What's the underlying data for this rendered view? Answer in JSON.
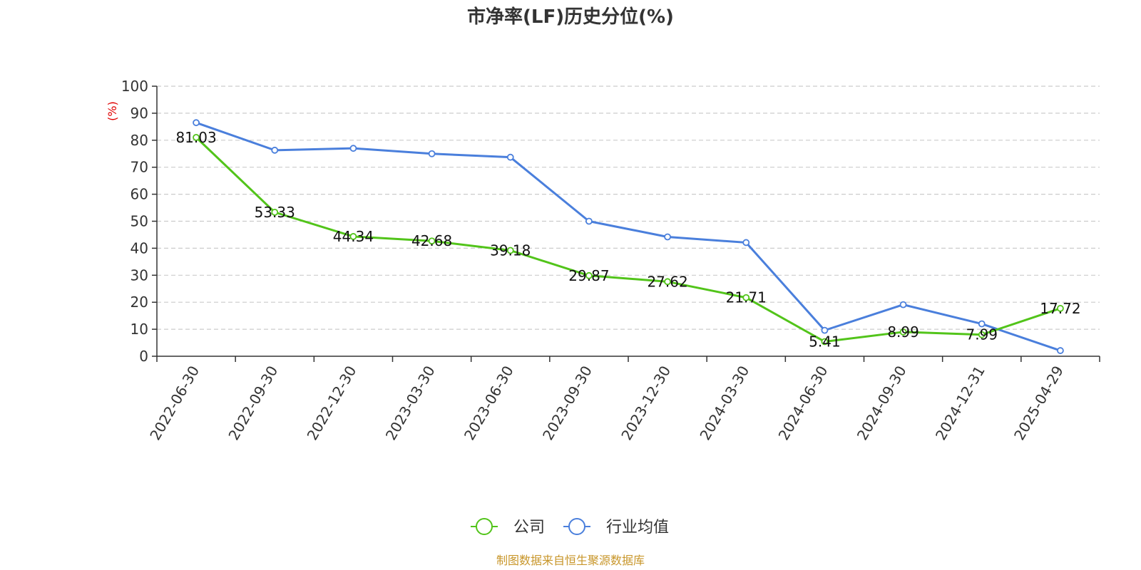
{
  "chart_data": {
    "type": "line",
    "title": "市净率(LF)历史分位(%)",
    "ylabel": "(%)",
    "xlabel": "",
    "ylim": [
      0,
      100
    ],
    "yticks": [
      0,
      10,
      20,
      30,
      40,
      50,
      60,
      70,
      80,
      90,
      100
    ],
    "grid": true,
    "legend_position": "bottom",
    "categories": [
      "2022-06-30",
      "2022-09-30",
      "2022-12-30",
      "2023-03-30",
      "2023-06-30",
      "2023-09-30",
      "2023-12-30",
      "2024-03-30",
      "2024-06-30",
      "2024-09-30",
      "2024-12-31",
      "2025-04-29"
    ],
    "series": [
      {
        "name": "公司",
        "color": "#52c41a",
        "values": [
          81.03,
          53.33,
          44.34,
          42.68,
          39.18,
          29.87,
          27.62,
          21.71,
          5.41,
          8.99,
          7.99,
          17.72
        ],
        "show_labels": true
      },
      {
        "name": "行业均值",
        "color": "#4a7fdc",
        "values": [
          86.5,
          76.3,
          77.0,
          75.0,
          73.7,
          50.0,
          44.2,
          42.1,
          9.6,
          19.1,
          12.0,
          2.1
        ],
        "show_labels": false
      }
    ]
  },
  "source_note": "制图数据来自恒生聚源数据库"
}
